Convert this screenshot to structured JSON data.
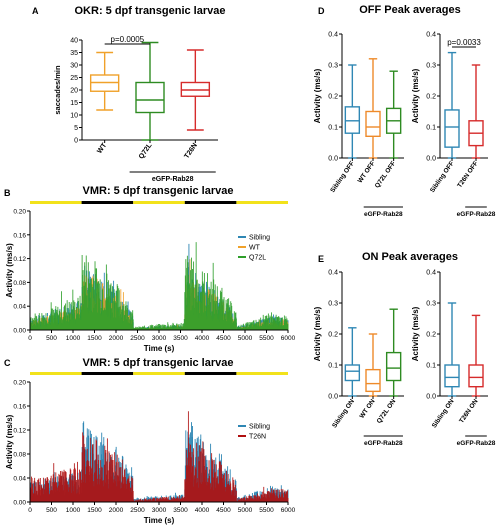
{
  "chart_data": [
    {
      "panel": "A",
      "type": "box",
      "title": "OKR: 5 dpf transgenic larvae",
      "ylabel": "saccades/min",
      "ylim": [
        0,
        40
      ],
      "yticks": [
        0,
        5,
        10,
        15,
        20,
        25,
        30,
        35,
        40
      ],
      "categories": [
        "WT",
        "Q72L",
        "T26N"
      ],
      "group_label": "eGFP-Rab28",
      "group_members": [
        "Q72L",
        "T26N"
      ],
      "colors": [
        "#f0a12a",
        "#2e8b22",
        "#d62b2b"
      ],
      "boxes": [
        {
          "min": 12,
          "q1": 19.5,
          "median": 23,
          "q3": 26,
          "max": 35
        },
        {
          "min": 0,
          "q1": 11,
          "median": 16,
          "q3": 23,
          "max": 39
        },
        {
          "min": 4,
          "q1": 17.5,
          "median": 20,
          "q3": 23,
          "max": 36
        }
      ],
      "annotations": [
        {
          "text": "p=0.0005",
          "from": 0,
          "to": 1
        }
      ]
    },
    {
      "panel": "D-left",
      "type": "box",
      "title": "OFF Peak averages",
      "ylabel": "Activity (ms/s)",
      "ylim": [
        0,
        0.4
      ],
      "yticks": [
        0.0,
        0.1,
        0.2,
        0.3,
        0.4
      ],
      "categories": [
        "Sibling OFF",
        "WT OFF",
        "Q72L OFF"
      ],
      "group_label": "eGFP-Rab28",
      "group_members": [
        "WT OFF",
        "Q72L OFF"
      ],
      "colors": [
        "#2f87b4",
        "#ee8a2a",
        "#2e8b22"
      ],
      "boxes": [
        {
          "min": 0.0,
          "q1": 0.08,
          "median": 0.12,
          "q3": 0.165,
          "max": 0.3
        },
        {
          "min": 0.0,
          "q1": 0.07,
          "median": 0.1,
          "q3": 0.15,
          "max": 0.32
        },
        {
          "min": 0.0,
          "q1": 0.08,
          "median": 0.12,
          "q3": 0.16,
          "max": 0.28
        }
      ],
      "annotations": []
    },
    {
      "panel": "D-right",
      "type": "box",
      "title": "",
      "ylabel": "Activity (ms/s)",
      "ylim": [
        0,
        0.4
      ],
      "yticks": [
        0.0,
        0.1,
        0.2,
        0.3,
        0.4
      ],
      "categories": [
        "Sibling  OFF",
        "T26N OFF"
      ],
      "group_label": "eGFP-Rab28",
      "group_members": [
        "T26N OFF"
      ],
      "colors": [
        "#2f87b4",
        "#d62b2b"
      ],
      "boxes": [
        {
          "min": 0.0,
          "q1": 0.035,
          "median": 0.1,
          "q3": 0.155,
          "max": 0.34
        },
        {
          "min": 0.0,
          "q1": 0.04,
          "median": 0.08,
          "q3": 0.12,
          "max": 0.3
        }
      ],
      "annotations": [
        {
          "text": "p=0.0033",
          "from": 0,
          "to": 1
        }
      ]
    },
    {
      "panel": "E-left",
      "type": "box",
      "title": "ON Peak averages",
      "ylabel": "Activity (ms/s)",
      "ylim": [
        0,
        0.4
      ],
      "yticks": [
        0.0,
        0.1,
        0.2,
        0.3,
        0.4
      ],
      "categories": [
        "Sibling ON",
        "WT ON",
        "Q72L ON"
      ],
      "group_label": "eGFP-Rab28",
      "group_members": [
        "WT ON",
        "Q72L ON"
      ],
      "colors": [
        "#2f87b4",
        "#ee8a2a",
        "#2e8b22"
      ],
      "boxes": [
        {
          "min": 0.0,
          "q1": 0.05,
          "median": 0.08,
          "q3": 0.1,
          "max": 0.22
        },
        {
          "min": 0.0,
          "q1": 0.015,
          "median": 0.04,
          "q3": 0.085,
          "max": 0.2
        },
        {
          "min": 0.0,
          "q1": 0.05,
          "median": 0.09,
          "q3": 0.14,
          "max": 0.28
        }
      ],
      "annotations": []
    },
    {
      "panel": "E-right",
      "type": "box",
      "title": "",
      "ylabel": "Activity (ms/s)",
      "ylim": [
        0,
        0.4
      ],
      "yticks": [
        0.0,
        0.1,
        0.2,
        0.3,
        0.4
      ],
      "categories": [
        "Sibling ON",
        "T26N ON"
      ],
      "group_label": "eGFP-Rab28",
      "group_members": [
        "T26N ON"
      ],
      "colors": [
        "#2f87b4",
        "#d62b2b"
      ],
      "boxes": [
        {
          "min": 0.0,
          "q1": 0.03,
          "median": 0.06,
          "q3": 0.1,
          "max": 0.3
        },
        {
          "min": 0.0,
          "q1": 0.03,
          "median": 0.06,
          "q3": 0.1,
          "max": 0.26
        }
      ],
      "annotations": []
    },
    {
      "panel": "B",
      "type": "line",
      "title": "VMR: 5 dpf transgenic larvae",
      "xlabel": "Time (s)",
      "ylabel": "Activity (ms/s)",
      "xlim": [
        0,
        6000
      ],
      "ylim": [
        0,
        0.2
      ],
      "xticks": [
        0,
        500,
        1000,
        1500,
        2000,
        2500,
        3000,
        3500,
        4000,
        4500,
        5000,
        5500,
        6000
      ],
      "yticks": [
        0.0,
        0.04,
        0.08,
        0.12,
        0.16,
        0.2
      ],
      "light_bar": [
        {
          "start": 0,
          "end": 1200,
          "state": "on",
          "color": "#f2e21b"
        },
        {
          "start": 1200,
          "end": 2400,
          "state": "off",
          "color": "#000000"
        },
        {
          "start": 2400,
          "end": 3600,
          "state": "on",
          "color": "#f2e21b"
        },
        {
          "start": 3600,
          "end": 4800,
          "state": "off",
          "color": "#000000"
        },
        {
          "start": 4800,
          "end": 6000,
          "state": "on",
          "color": "#f2e21b"
        }
      ],
      "legend": {
        "placement": "right",
        "entries": [
          "Sibling",
          "WT",
          "Q72L"
        ]
      },
      "series": [
        {
          "name": "Sibling",
          "color": "#2f87b4",
          "x": [
            0,
            600,
            1190,
            1210,
            1500,
            1800,
            2100,
            2390,
            2410,
            3000,
            3590,
            3610,
            3900,
            4200,
            4500,
            4790,
            4810,
            5200,
            5600,
            6000
          ],
          "y": [
            0.012,
            0.02,
            0.03,
            0.075,
            0.06,
            0.05,
            0.035,
            0.015,
            0.002,
            0.004,
            0.005,
            0.07,
            0.055,
            0.045,
            0.03,
            0.015,
            0.003,
            0.008,
            0.014,
            0.012
          ]
        },
        {
          "name": "WT",
          "color": "#f0a12a",
          "x": [
            0,
            600,
            1190,
            1210,
            1500,
            1800,
            2100,
            2390,
            2410,
            3000,
            3590,
            3610,
            3900,
            4200,
            4500,
            4790,
            4810,
            5200,
            5600,
            6000
          ],
          "y": [
            0.01,
            0.016,
            0.025,
            0.07,
            0.055,
            0.045,
            0.03,
            0.012,
            0.002,
            0.003,
            0.004,
            0.065,
            0.05,
            0.04,
            0.028,
            0.012,
            0.002,
            0.006,
            0.01,
            0.01
          ]
        },
        {
          "name": "Q72L",
          "color": "#2e9e2a",
          "x": [
            0,
            600,
            1190,
            1210,
            1500,
            1800,
            2100,
            2390,
            2410,
            3000,
            3590,
            3610,
            3900,
            4200,
            4500,
            4790,
            4810,
            5200,
            5600,
            6000
          ],
          "y": [
            0.016,
            0.024,
            0.035,
            0.085,
            0.07,
            0.06,
            0.042,
            0.02,
            0.003,
            0.006,
            0.008,
            0.08,
            0.065,
            0.055,
            0.04,
            0.02,
            0.004,
            0.01,
            0.016,
            0.014
          ]
        }
      ]
    },
    {
      "panel": "C",
      "type": "line",
      "title": "VMR: 5 dpf transgenic larvae",
      "xlabel": "Time (s)",
      "ylabel": "Activity (ms/s)",
      "xlim": [
        0,
        6000
      ],
      "ylim": [
        0,
        0.2
      ],
      "xticks": [
        0,
        500,
        1000,
        1500,
        2000,
        2500,
        3000,
        3500,
        4000,
        4500,
        5000,
        5500,
        6000
      ],
      "yticks": [
        0.0,
        0.04,
        0.08,
        0.12,
        0.16,
        0.2
      ],
      "light_bar": [
        {
          "start": 0,
          "end": 1200,
          "state": "on",
          "color": "#f2e21b"
        },
        {
          "start": 1200,
          "end": 2400,
          "state": "off",
          "color": "#000000"
        },
        {
          "start": 2400,
          "end": 3600,
          "state": "on",
          "color": "#f2e21b"
        },
        {
          "start": 3600,
          "end": 4800,
          "state": "off",
          "color": "#000000"
        },
        {
          "start": 4800,
          "end": 6000,
          "state": "on",
          "color": "#f2e21b"
        }
      ],
      "legend": {
        "placement": "right",
        "entries": [
          "Sibling",
          "T26N"
        ]
      },
      "series": [
        {
          "name": "Sibling",
          "color": "#2f87b4",
          "x": [
            0,
            600,
            1190,
            1210,
            1500,
            1800,
            2100,
            2390,
            2410,
            3000,
            3590,
            3610,
            3900,
            4200,
            4500,
            4790,
            4810,
            5200,
            5600,
            6000
          ],
          "y": [
            0.02,
            0.025,
            0.03,
            0.085,
            0.075,
            0.065,
            0.05,
            0.03,
            0.004,
            0.006,
            0.008,
            0.075,
            0.07,
            0.06,
            0.045,
            0.025,
            0.004,
            0.01,
            0.015,
            0.018
          ]
        },
        {
          "name": "T26N",
          "color": "#b01010",
          "x": [
            0,
            600,
            1190,
            1210,
            1500,
            1800,
            2100,
            2390,
            2410,
            3000,
            3590,
            3610,
            3900,
            4200,
            4500,
            4790,
            4810,
            5200,
            5600,
            6000
          ],
          "y": [
            0.025,
            0.03,
            0.035,
            0.075,
            0.065,
            0.055,
            0.045,
            0.025,
            0.003,
            0.005,
            0.006,
            0.07,
            0.06,
            0.05,
            0.04,
            0.02,
            0.003,
            0.008,
            0.012,
            0.014
          ]
        }
      ]
    }
  ],
  "panel_letters": [
    "A",
    "B",
    "C",
    "D",
    "E"
  ]
}
